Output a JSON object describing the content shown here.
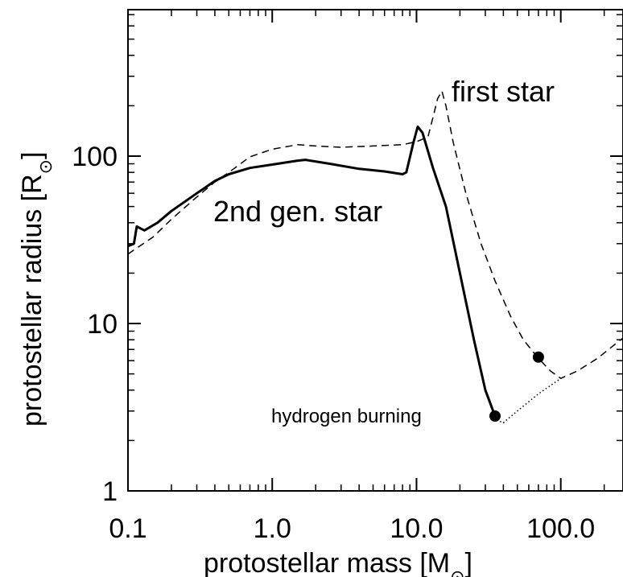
{
  "chart_data": {
    "type": "line",
    "xscale": "log",
    "yscale": "log",
    "xlim": [
      0.1,
      270
    ],
    "ylim": [
      1,
      750
    ],
    "xlabel": "protostellar mass [M",
    "xlabel_sub": "⊙",
    "xlabel_close": "]",
    "ylabel": "protostellar radius [R",
    "ylabel_sub": "⊙",
    "ylabel_close": "]",
    "xticks": [
      {
        "value": 0.1,
        "label": "0.1"
      },
      {
        "value": 1,
        "label": "1.0"
      },
      {
        "value": 10,
        "label": "10.0"
      },
      {
        "value": 100,
        "label": "100.0"
      }
    ],
    "yticks": [
      {
        "value": 1,
        "label": "1"
      },
      {
        "value": 10,
        "label": "10"
      },
      {
        "value": 100,
        "label": "100"
      }
    ],
    "grid": false,
    "series": [
      {
        "name": "2nd gen. star",
        "style": "solid",
        "x": [
          0.1,
          0.11,
          0.115,
          0.13,
          0.16,
          0.2,
          0.3,
          0.4,
          0.5,
          0.7,
          1.0,
          1.5,
          1.7,
          2.5,
          4.0,
          6.0,
          8.0,
          8.5,
          9.5,
          10.2,
          11.0,
          13.0,
          16.0,
          20.0,
          25.0,
          30.0,
          35.0
        ],
        "y": [
          29,
          30,
          38,
          36,
          40,
          47,
          60,
          71,
          78,
          85,
          89,
          94,
          95,
          90,
          84,
          81,
          78,
          80,
          120,
          150,
          138,
          85,
          50,
          20,
          8,
          4,
          2.8
        ]
      },
      {
        "name": "first star",
        "style": "dashed",
        "x": [
          0.1,
          0.15,
          0.2,
          0.3,
          0.4,
          0.5,
          0.7,
          1.0,
          1.5,
          2.0,
          3.0,
          5.0,
          8.0,
          10.0,
          12.0,
          13.0,
          14.0,
          15.0,
          16.0,
          18.0,
          22.0,
          28.0,
          35.0,
          45.0,
          55.0,
          70.0,
          85.0,
          100.0,
          130.0,
          180.0,
          270.0
        ],
        "y": [
          26,
          33,
          42,
          57,
          70,
          80,
          99,
          110,
          117,
          115,
          113,
          115,
          117,
          122,
          130,
          170,
          220,
          245,
          200,
          120,
          60,
          30,
          18,
          11,
          8,
          6.2,
          5.2,
          4.7,
          5.2,
          6.2,
          8.2
        ]
      },
      {
        "name": "",
        "style": "dotted",
        "x": [
          35.0,
          38.0,
          40.0,
          42.0,
          50.0,
          70.0,
          100.0
        ],
        "y": [
          2.8,
          2.6,
          2.55,
          2.65,
          3.0,
          3.8,
          4.7
        ]
      }
    ],
    "markers": [
      {
        "x": 35.0,
        "y": 2.8
      },
      {
        "x": 70.0,
        "y": 6.3
      }
    ],
    "annotations": {
      "first_star": "first star",
      "second_gen": "2nd gen. star",
      "hydrogen": "hydrogen burning"
    }
  }
}
